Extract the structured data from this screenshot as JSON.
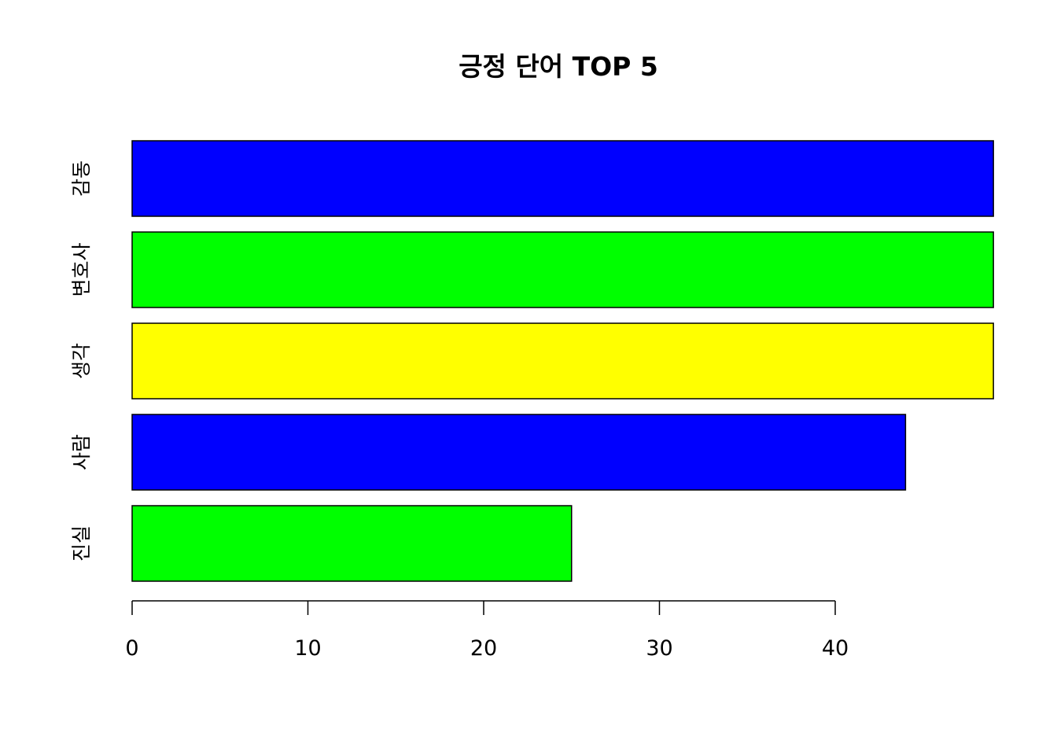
{
  "chart_data": {
    "type": "bar",
    "orientation": "horizontal",
    "title": "긍정 단어 TOP 5",
    "xlabel": "",
    "ylabel": "",
    "categories": [
      "감동",
      "변호사",
      "생각",
      "사람",
      "진실"
    ],
    "values": [
      49,
      49,
      49,
      44,
      25
    ],
    "colors": [
      "#0000FF",
      "#00FF00",
      "#FFFF00",
      "#0000FF",
      "#00FF00"
    ],
    "xlim": [
      0,
      49
    ],
    "xticks": [
      "0",
      "10",
      "20",
      "30",
      "40"
    ],
    "grid": false,
    "legend": "none"
  }
}
